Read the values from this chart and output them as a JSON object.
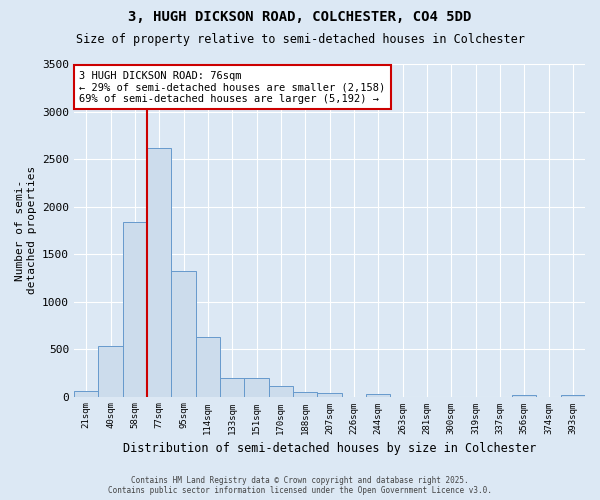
{
  "title": "3, HUGH DICKSON ROAD, COLCHESTER, CO4 5DD",
  "subtitle": "Size of property relative to semi-detached houses in Colchester",
  "xlabel": "Distribution of semi-detached houses by size in Colchester",
  "ylabel": "Number of semi-\ndetached properties",
  "categories": [
    "21sqm",
    "40sqm",
    "58sqm",
    "77sqm",
    "95sqm",
    "114sqm",
    "133sqm",
    "151sqm",
    "170sqm",
    "188sqm",
    "207sqm",
    "226sqm",
    "244sqm",
    "263sqm",
    "281sqm",
    "300sqm",
    "319sqm",
    "337sqm",
    "356sqm",
    "374sqm",
    "393sqm"
  ],
  "values": [
    60,
    530,
    1840,
    2620,
    1320,
    630,
    200,
    200,
    110,
    50,
    40,
    0,
    30,
    0,
    0,
    0,
    0,
    0,
    20,
    0,
    20
  ],
  "bar_color": "#ccdcec",
  "bar_edge_color": "#6699cc",
  "highlight_color": "#cc0000",
  "annotation_title": "3 HUGH DICKSON ROAD: 76sqm",
  "annotation_line1": "← 29% of semi-detached houses are smaller (2,158)",
  "annotation_line2": "69% of semi-detached houses are larger (5,192) →",
  "ylim": [
    0,
    3500
  ],
  "yticks": [
    0,
    500,
    1000,
    1500,
    2000,
    2500,
    3000,
    3500
  ],
  "footer1": "Contains HM Land Registry data © Crown copyright and database right 2025.",
  "footer2": "Contains public sector information licensed under the Open Government Licence v3.0.",
  "bg_color": "#dce8f4",
  "plot_bg_color": "#dce8f4",
  "grid_color": "#ffffff"
}
